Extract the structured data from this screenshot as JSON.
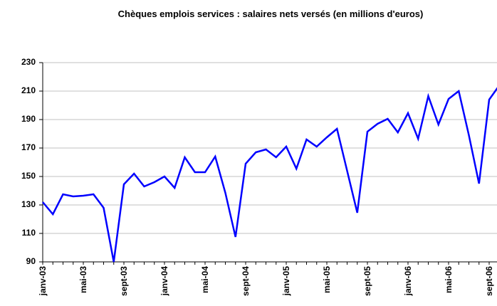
{
  "chart_data": {
    "type": "line",
    "title": "Chèques emplois services : salaires nets versés (en millions d'euros)",
    "categories": [
      "janv-03",
      null,
      null,
      null,
      "mai-03",
      null,
      null,
      null,
      "sept-03",
      null,
      null,
      null,
      "janv-04",
      null,
      null,
      null,
      "mai-04",
      null,
      null,
      null,
      "sept-04",
      null,
      null,
      null,
      "janv-05",
      null,
      null,
      null,
      "mai-05",
      null,
      null,
      null,
      "sept-05",
      null,
      null,
      null,
      "janv-06",
      null,
      null,
      null,
      "mai-06",
      null,
      null,
      null,
      "sept-06",
      null
    ],
    "series": [
      {
        "color": "#0000ff",
        "values": [
          132,
          123.5,
          137.5,
          136,
          136.5,
          137.5,
          128,
          90,
          144.5,
          152,
          143,
          146,
          150,
          142,
          163.5,
          153,
          153,
          164,
          138.5,
          107.5,
          159,
          167,
          169,
          163.5,
          171,
          155.5,
          176,
          171,
          177.5,
          183.5,
          154,
          124.5,
          181.5,
          187,
          190.5,
          181,
          194.5,
          176.5,
          206.5,
          186.5,
          204.5,
          210,
          179,
          145,
          204,
          214
        ]
      }
    ],
    "ylim": [
      90,
      230
    ],
    "yticks": [
      90,
      110,
      130,
      150,
      170,
      190,
      210,
      230
    ],
    "grid": true
  }
}
